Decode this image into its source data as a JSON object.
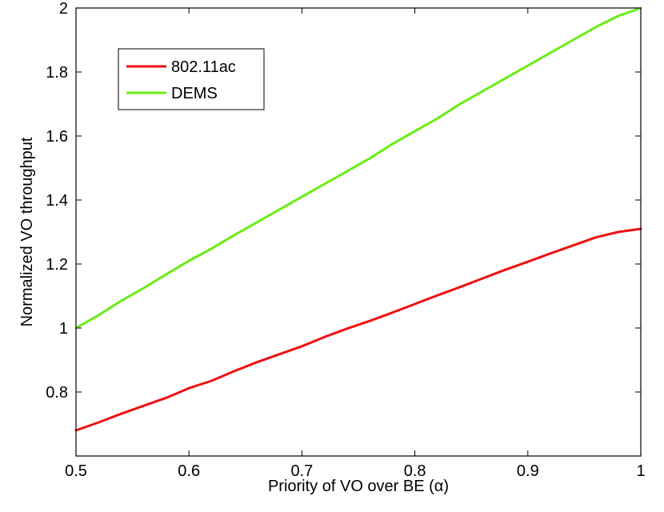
{
  "chart_data": {
    "type": "line",
    "title": "",
    "xlabel": "Priority of VO over BE (",
    "xlabel_symbol": "α",
    "xlabel_suffix": ")",
    "ylabel": "Normalized VO throughput",
    "xlim": [
      0.5,
      1
    ],
    "ylim": [
      0.6,
      2
    ],
    "xticks": [
      0.5,
      0.6,
      0.7,
      0.8,
      0.9,
      1
    ],
    "xtick_labels": [
      "0.5",
      "0.6",
      "0.7",
      "0.8",
      "0.9",
      "1"
    ],
    "yticks": [
      0.8,
      1,
      1.2,
      1.4,
      1.6,
      1.8,
      2
    ],
    "ytick_labels": [
      "0.8",
      "1",
      "1.2",
      "1.4",
      "1.6",
      "1.8",
      "2"
    ],
    "grid": false,
    "legend_position": "top-left",
    "series": [
      {
        "name": "802.11ac",
        "color": "#ee1111",
        "x": [
          0.5,
          0.52,
          0.54,
          0.56,
          0.58,
          0.6,
          0.62,
          0.64,
          0.66,
          0.68,
          0.7,
          0.72,
          0.74,
          0.76,
          0.78,
          0.8,
          0.82,
          0.84,
          0.86,
          0.88,
          0.9,
          0.92,
          0.94,
          0.96,
          0.98,
          1.0
        ],
        "values": [
          0.68,
          0.705,
          0.732,
          0.757,
          0.782,
          0.812,
          0.835,
          0.865,
          0.893,
          0.918,
          0.943,
          0.972,
          0.998,
          1.022,
          1.048,
          1.075,
          1.102,
          1.128,
          1.155,
          1.182,
          1.207,
          1.233,
          1.258,
          1.283,
          1.3,
          1.31
        ]
      },
      {
        "name": "DEMS",
        "color": "#66ee11",
        "x": [
          0.5,
          0.52,
          0.54,
          0.56,
          0.58,
          0.6,
          0.62,
          0.64,
          0.66,
          0.68,
          0.7,
          0.72,
          0.74,
          0.76,
          0.78,
          0.8,
          0.82,
          0.84,
          0.86,
          0.88,
          0.9,
          0.92,
          0.94,
          0.96,
          0.98,
          1.0
        ],
        "values": [
          1.0,
          1.04,
          1.085,
          1.125,
          1.168,
          1.21,
          1.248,
          1.29,
          1.33,
          1.37,
          1.41,
          1.45,
          1.49,
          1.53,
          1.575,
          1.615,
          1.655,
          1.7,
          1.74,
          1.78,
          1.82,
          1.86,
          1.9,
          1.94,
          1.975,
          2.0
        ]
      }
    ]
  }
}
